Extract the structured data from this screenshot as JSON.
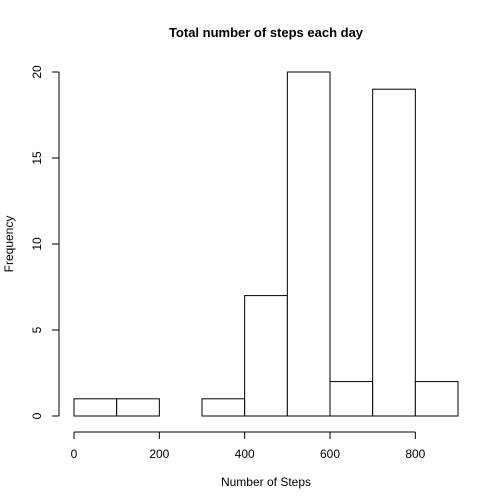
{
  "chart_data": {
    "type": "bar",
    "title": "Total number of steps each day",
    "xlabel": "Number of Steps",
    "ylabel": "Frequency",
    "bins": [
      {
        "start": 0,
        "end": 100,
        "count": 1
      },
      {
        "start": 100,
        "end": 200,
        "count": 1
      },
      {
        "start": 200,
        "end": 300,
        "count": 0
      },
      {
        "start": 300,
        "end": 400,
        "count": 1
      },
      {
        "start": 400,
        "end": 500,
        "count": 7
      },
      {
        "start": 500,
        "end": 600,
        "count": 20
      },
      {
        "start": 600,
        "end": 700,
        "count": 2
      },
      {
        "start": 700,
        "end": 800,
        "count": 19
      },
      {
        "start": 800,
        "end": 900,
        "count": 2
      }
    ],
    "xlim": [
      0,
      900
    ],
    "ylim": [
      0,
      20
    ],
    "x_ticks": [
      0,
      200,
      400,
      600,
      800
    ],
    "y_ticks": [
      0,
      5,
      10,
      15,
      20
    ],
    "grid": false,
    "legend": "none",
    "colors": {
      "bar_fill": "#ffffff",
      "bar_stroke": "#000000",
      "axis": "#000000"
    }
  }
}
